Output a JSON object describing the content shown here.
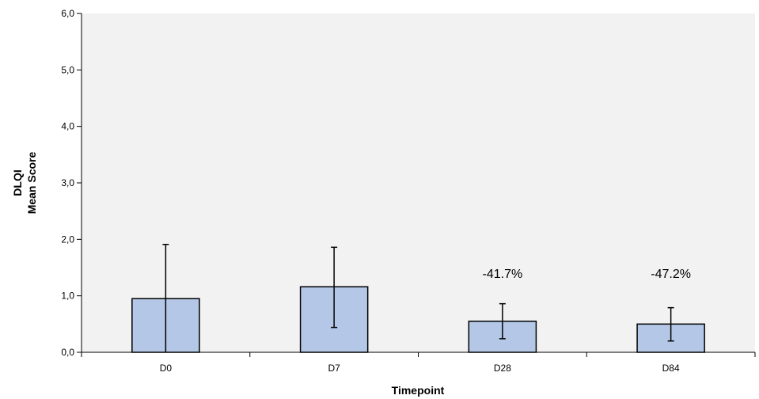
{
  "chart_data": {
    "type": "bar",
    "title": "",
    "xlabel": "Timepoint",
    "ylabel_lines": [
      "DLQI",
      "Mean Score"
    ],
    "categories": [
      "D0",
      "D7",
      "D28",
      "D84"
    ],
    "values": [
      0.95,
      1.16,
      0.55,
      0.5
    ],
    "error_upper": [
      1.91,
      1.86,
      0.86,
      0.79
    ],
    "error_lower": [
      0.0,
      0.44,
      0.24,
      0.2
    ],
    "annotations": [
      "",
      "",
      "-41.7%",
      "-47.2%"
    ],
    "ylim": [
      0,
      6
    ],
    "yticks": [
      0,
      1,
      2,
      3,
      4,
      5,
      6
    ],
    "ytick_labels": [
      "0,0",
      "1,0",
      "2,0",
      "3,0",
      "4,0",
      "5,0",
      "6,0"
    ],
    "grid": false,
    "colors": {
      "bar_fill": "#b4c7e7",
      "plot_bg": "#f2f2f2",
      "stroke": "#000000"
    }
  }
}
